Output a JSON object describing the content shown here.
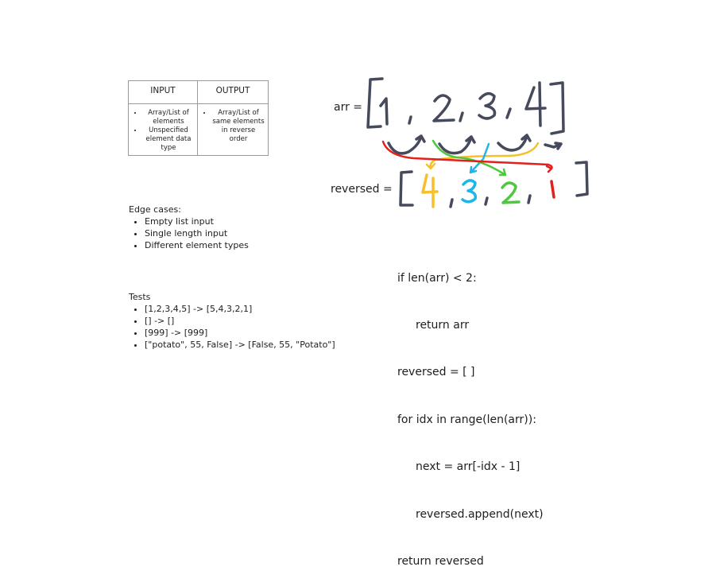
{
  "table": {
    "input_header": "INPUT",
    "output_header": "OUTPUT",
    "input_items": [
      "Array/List  of elements",
      "Unspecified element data type"
    ],
    "output_items": [
      "Array/List of same elements in reverse order"
    ]
  },
  "edge_cases": {
    "title": "Edge cases:",
    "items": [
      "Empty list input",
      "Single length input",
      "Different element types"
    ]
  },
  "tests": {
    "title": "Tests",
    "items": [
      "[1,2,3,4,5] -> [5,4,3,2,1]",
      "[] -> []",
      "[999] -> [999]",
      "[\"potato\", 55, False] -> [False, 55, \"Potato\"]"
    ]
  },
  "sketch": {
    "arr_label": "arr =",
    "reversed_label": "reversed =",
    "arr_values": [
      "1",
      "2",
      "3",
      "4"
    ],
    "reversed_values": [
      "4",
      "3",
      "2",
      "1"
    ],
    "stroke_color": "#454a5c",
    "colors": {
      "four": "#f5c02a",
      "three": "#1fb5e8",
      "two": "#4ec83f",
      "one": "#e3201c"
    }
  },
  "code": {
    "lines": [
      "if len(arr) < 2:",
      "return arr",
      "reversed = [ ]",
      "for idx in range(len(arr)):",
      "next = arr[-idx - 1]",
      "reversed.append(next)",
      "return reversed"
    ]
  }
}
